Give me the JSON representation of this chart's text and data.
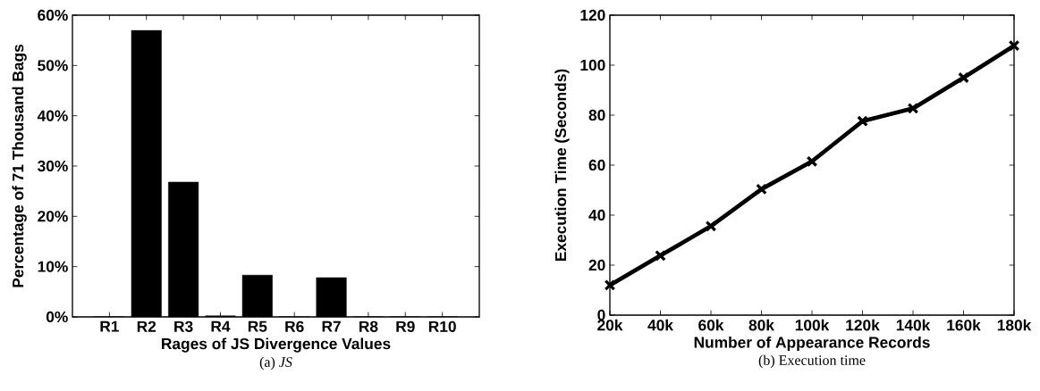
{
  "chart_data": [
    {
      "type": "bar",
      "title": "(a) *JS*",
      "xlabel": "Rages of JS Divergence Values",
      "ylabel": "Percentage of 71 Thousand Bags",
      "categories": [
        "R1",
        "R2",
        "R3",
        "R4",
        "R5",
        "R6",
        "R7",
        "R8",
        "R9",
        "R10"
      ],
      "values": [
        0,
        57.0,
        26.8,
        0.2,
        8.3,
        0,
        7.8,
        0,
        0,
        0
      ],
      "color": "#000000",
      "ylim": [
        0,
        60
      ],
      "yticks": [
        {
          "value": 0,
          "label": "0%"
        },
        {
          "value": 10,
          "label": "10%"
        },
        {
          "value": 20,
          "label": "20%"
        },
        {
          "value": 30,
          "label": "30%"
        },
        {
          "value": 40,
          "label": "40%"
        },
        {
          "value": 50,
          "label": "50%"
        },
        {
          "value": 60,
          "label": "60%"
        }
      ]
    },
    {
      "type": "line",
      "title": "(b) Execution time",
      "xlabel": "Number of Appearance Records",
      "ylabel": "Execution Time (Seconds)",
      "x": [
        20000,
        40000,
        60000,
        80000,
        100000,
        120000,
        140000,
        160000,
        180000
      ],
      "values": [
        12.0,
        23.8,
        35.6,
        50.4,
        61.5,
        77.6,
        82.7,
        95.0,
        107.8
      ],
      "color": "#000000",
      "marker": "cross",
      "line_style": "solid",
      "xlim": [
        20000,
        180000
      ],
      "xticks": [
        {
          "value": 20000,
          "label": "20k"
        },
        {
          "value": 40000,
          "label": "40k"
        },
        {
          "value": 60000,
          "label": "60k"
        },
        {
          "value": 80000,
          "label": "80k"
        },
        {
          "value": 100000,
          "label": "100k"
        },
        {
          "value": 120000,
          "label": "120k"
        },
        {
          "value": 140000,
          "label": "140k"
        },
        {
          "value": 160000,
          "label": "160k"
        },
        {
          "value": 180000,
          "label": "180k"
        }
      ],
      "ylim": [
        0,
        120
      ],
      "yticks": [
        0,
        20,
        40,
        60,
        80,
        100,
        120
      ]
    }
  ]
}
